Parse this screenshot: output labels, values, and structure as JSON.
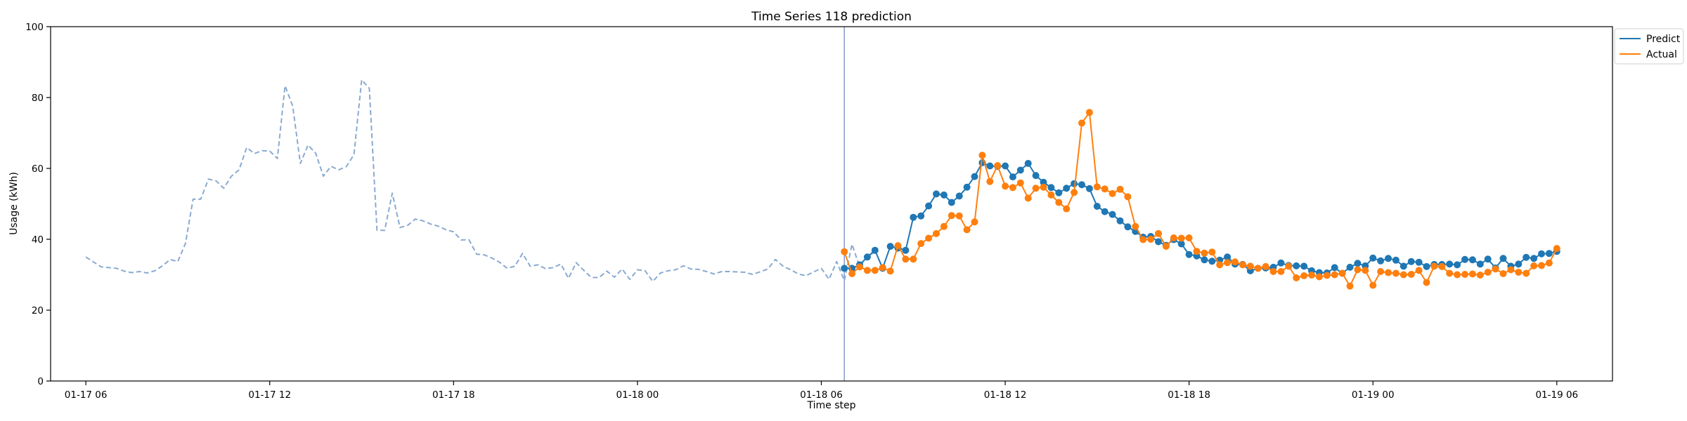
{
  "chart_data": {
    "type": "line",
    "title": "Time Series 118 prediction",
    "xlabel": "Time step",
    "ylabel": "Usage (kWh)",
    "ylim": [
      0,
      100
    ],
    "yticks": [
      0,
      20,
      40,
      60,
      80,
      100
    ],
    "xlim": [
      "2024-01-17 04:51",
      "2024-01-19 07:49"
    ],
    "xticks": [
      {
        "value": "2024-01-17 06:00",
        "label": "01-17 06"
      },
      {
        "value": "2024-01-17 12:00",
        "label": "01-17 12"
      },
      {
        "value": "2024-01-17 18:00",
        "label": "01-17 18"
      },
      {
        "value": "2024-01-18 00:00",
        "label": "01-18 00"
      },
      {
        "value": "2024-01-18 06:00",
        "label": "01-18 06"
      },
      {
        "value": "2024-01-18 12:00",
        "label": "01-18 12"
      },
      {
        "value": "2024-01-18 18:00",
        "label": "01-18 18"
      },
      {
        "value": "2024-01-19 00:00",
        "label": "01-19 00"
      },
      {
        "value": "2024-01-19 06:00",
        "label": "01-19 06"
      }
    ],
    "legend_position": "outside-top-right",
    "grid": false,
    "forecast_start": "2024-01-18 06:45",
    "series": [
      {
        "name": "Predict",
        "color": "#1f77b4",
        "style": "solid-with-markers",
        "start": "2024-01-18 06:45",
        "step_minutes": 15,
        "values": [
          31.8,
          31.8,
          32.8,
          35.0,
          36.9,
          31.8,
          38.0,
          37.5,
          36.9,
          46.2,
          46.6,
          49.4,
          52.8,
          52.5,
          50.4,
          52.2,
          54.7,
          57.7,
          61.6,
          60.7,
          60.6,
          60.7,
          57.6,
          59.5,
          61.4,
          58.0,
          56.1,
          54.6,
          53.1,
          54.4,
          55.7,
          55.4,
          54.3,
          49.3,
          47.8,
          47.0,
          45.2,
          43.5,
          42.2,
          40.6,
          40.8,
          39.3,
          38.3,
          39.9,
          38.7,
          35.7,
          35.3,
          34.2,
          33.8,
          34.1,
          35.0,
          33.0,
          32.9,
          31.1,
          31.8,
          31.9,
          32.1,
          33.3,
          32.6,
          32.5,
          32.4,
          31.1,
          30.6,
          30.5,
          32.0,
          30.4,
          32.1,
          33.2,
          32.5,
          34.7,
          33.9,
          34.6,
          34.1,
          32.4,
          33.7,
          33.5,
          32.3,
          32.9,
          32.9,
          33.0,
          32.8,
          34.3,
          34.2,
          33.0,
          34.4,
          31.9,
          34.6,
          32.4,
          33.0,
          34.9,
          34.6,
          35.9,
          36.0,
          36.6
        ]
      },
      {
        "name": "Actual",
        "color": "#ff7f0e",
        "style": "solid-with-markers",
        "start": "2024-01-18 06:45",
        "step_minutes": 15,
        "values": [
          36.5,
          30.3,
          32.2,
          31.2,
          31.2,
          32.0,
          31.0,
          38.2,
          34.4,
          34.4,
          38.8,
          40.3,
          41.6,
          43.6,
          46.7,
          46.6,
          42.7,
          44.9,
          63.7,
          56.3,
          60.8,
          55.0,
          54.6,
          55.9,
          51.6,
          54.4,
          54.7,
          52.5,
          50.4,
          48.6,
          53.2,
          72.8,
          75.8,
          54.8,
          54.2,
          52.9,
          54.1,
          52.0,
          43.6,
          39.9,
          40.0,
          41.6,
          38.0,
          40.4,
          40.3,
          40.4,
          36.6,
          36.1,
          36.4,
          32.8,
          33.4,
          33.6,
          32.8,
          32.4,
          31.8,
          32.3,
          30.9,
          30.9,
          32.4,
          29.1,
          29.7,
          29.9,
          29.4,
          29.8,
          30.0,
          30.4,
          26.8,
          31.4,
          31.2,
          27.0,
          30.9,
          30.6,
          30.4,
          30.0,
          30.1,
          31.2,
          27.8,
          32.4,
          32.3,
          30.4,
          30.0,
          30.1,
          30.2,
          29.9,
          30.7,
          31.6,
          30.3,
          31.4,
          30.7,
          30.4,
          32.5,
          32.6,
          33.3,
          37.4
        ]
      },
      {
        "name": "",
        "color": "#8aaad0",
        "style": "dashed",
        "start": "2024-01-17 06:00",
        "step_minutes": 15,
        "values": [
          35.0,
          33.6,
          32.2,
          32.0,
          31.8,
          31.0,
          30.6,
          30.9,
          30.5,
          31.1,
          32.5,
          34.3,
          33.7,
          38.8,
          51.3,
          51.3,
          57.0,
          56.5,
          54.4,
          57.8,
          59.6,
          65.9,
          64.2,
          65.0,
          64.9,
          62.8,
          83.3,
          77.6,
          61.4,
          66.6,
          64.3,
          57.8,
          60.6,
          59.6,
          60.5,
          63.9,
          85.0,
          82.6,
          42.6,
          42.5,
          53.0,
          43.3,
          43.9,
          45.7,
          45.2,
          44.3,
          43.7,
          42.7,
          42.1,
          39.8,
          39.9,
          35.8,
          35.6,
          34.7,
          33.5,
          31.8,
          32.4,
          36.0,
          32.4,
          32.8,
          31.7,
          32.0,
          33.0,
          29.0,
          33.4,
          31.2,
          29.2,
          29.2,
          31.0,
          29.3,
          31.6,
          28.7,
          31.4,
          31.1,
          28.1,
          30.5,
          31.1,
          31.4,
          32.5,
          31.6,
          31.5,
          30.9,
          30.2,
          30.9,
          30.9,
          30.8,
          30.7,
          30.1,
          30.8,
          31.6,
          34.3,
          32.4,
          31.4,
          30.2,
          29.7,
          30.8,
          31.8,
          28.7,
          33.7,
          28.3,
          38.6,
          32.2,
          35.1,
          36.5
        ]
      }
    ],
    "legend": [
      {
        "label": "Predict",
        "color": "#1f77b4"
      },
      {
        "label": "Actual",
        "color": "#ff7f0e"
      }
    ]
  }
}
